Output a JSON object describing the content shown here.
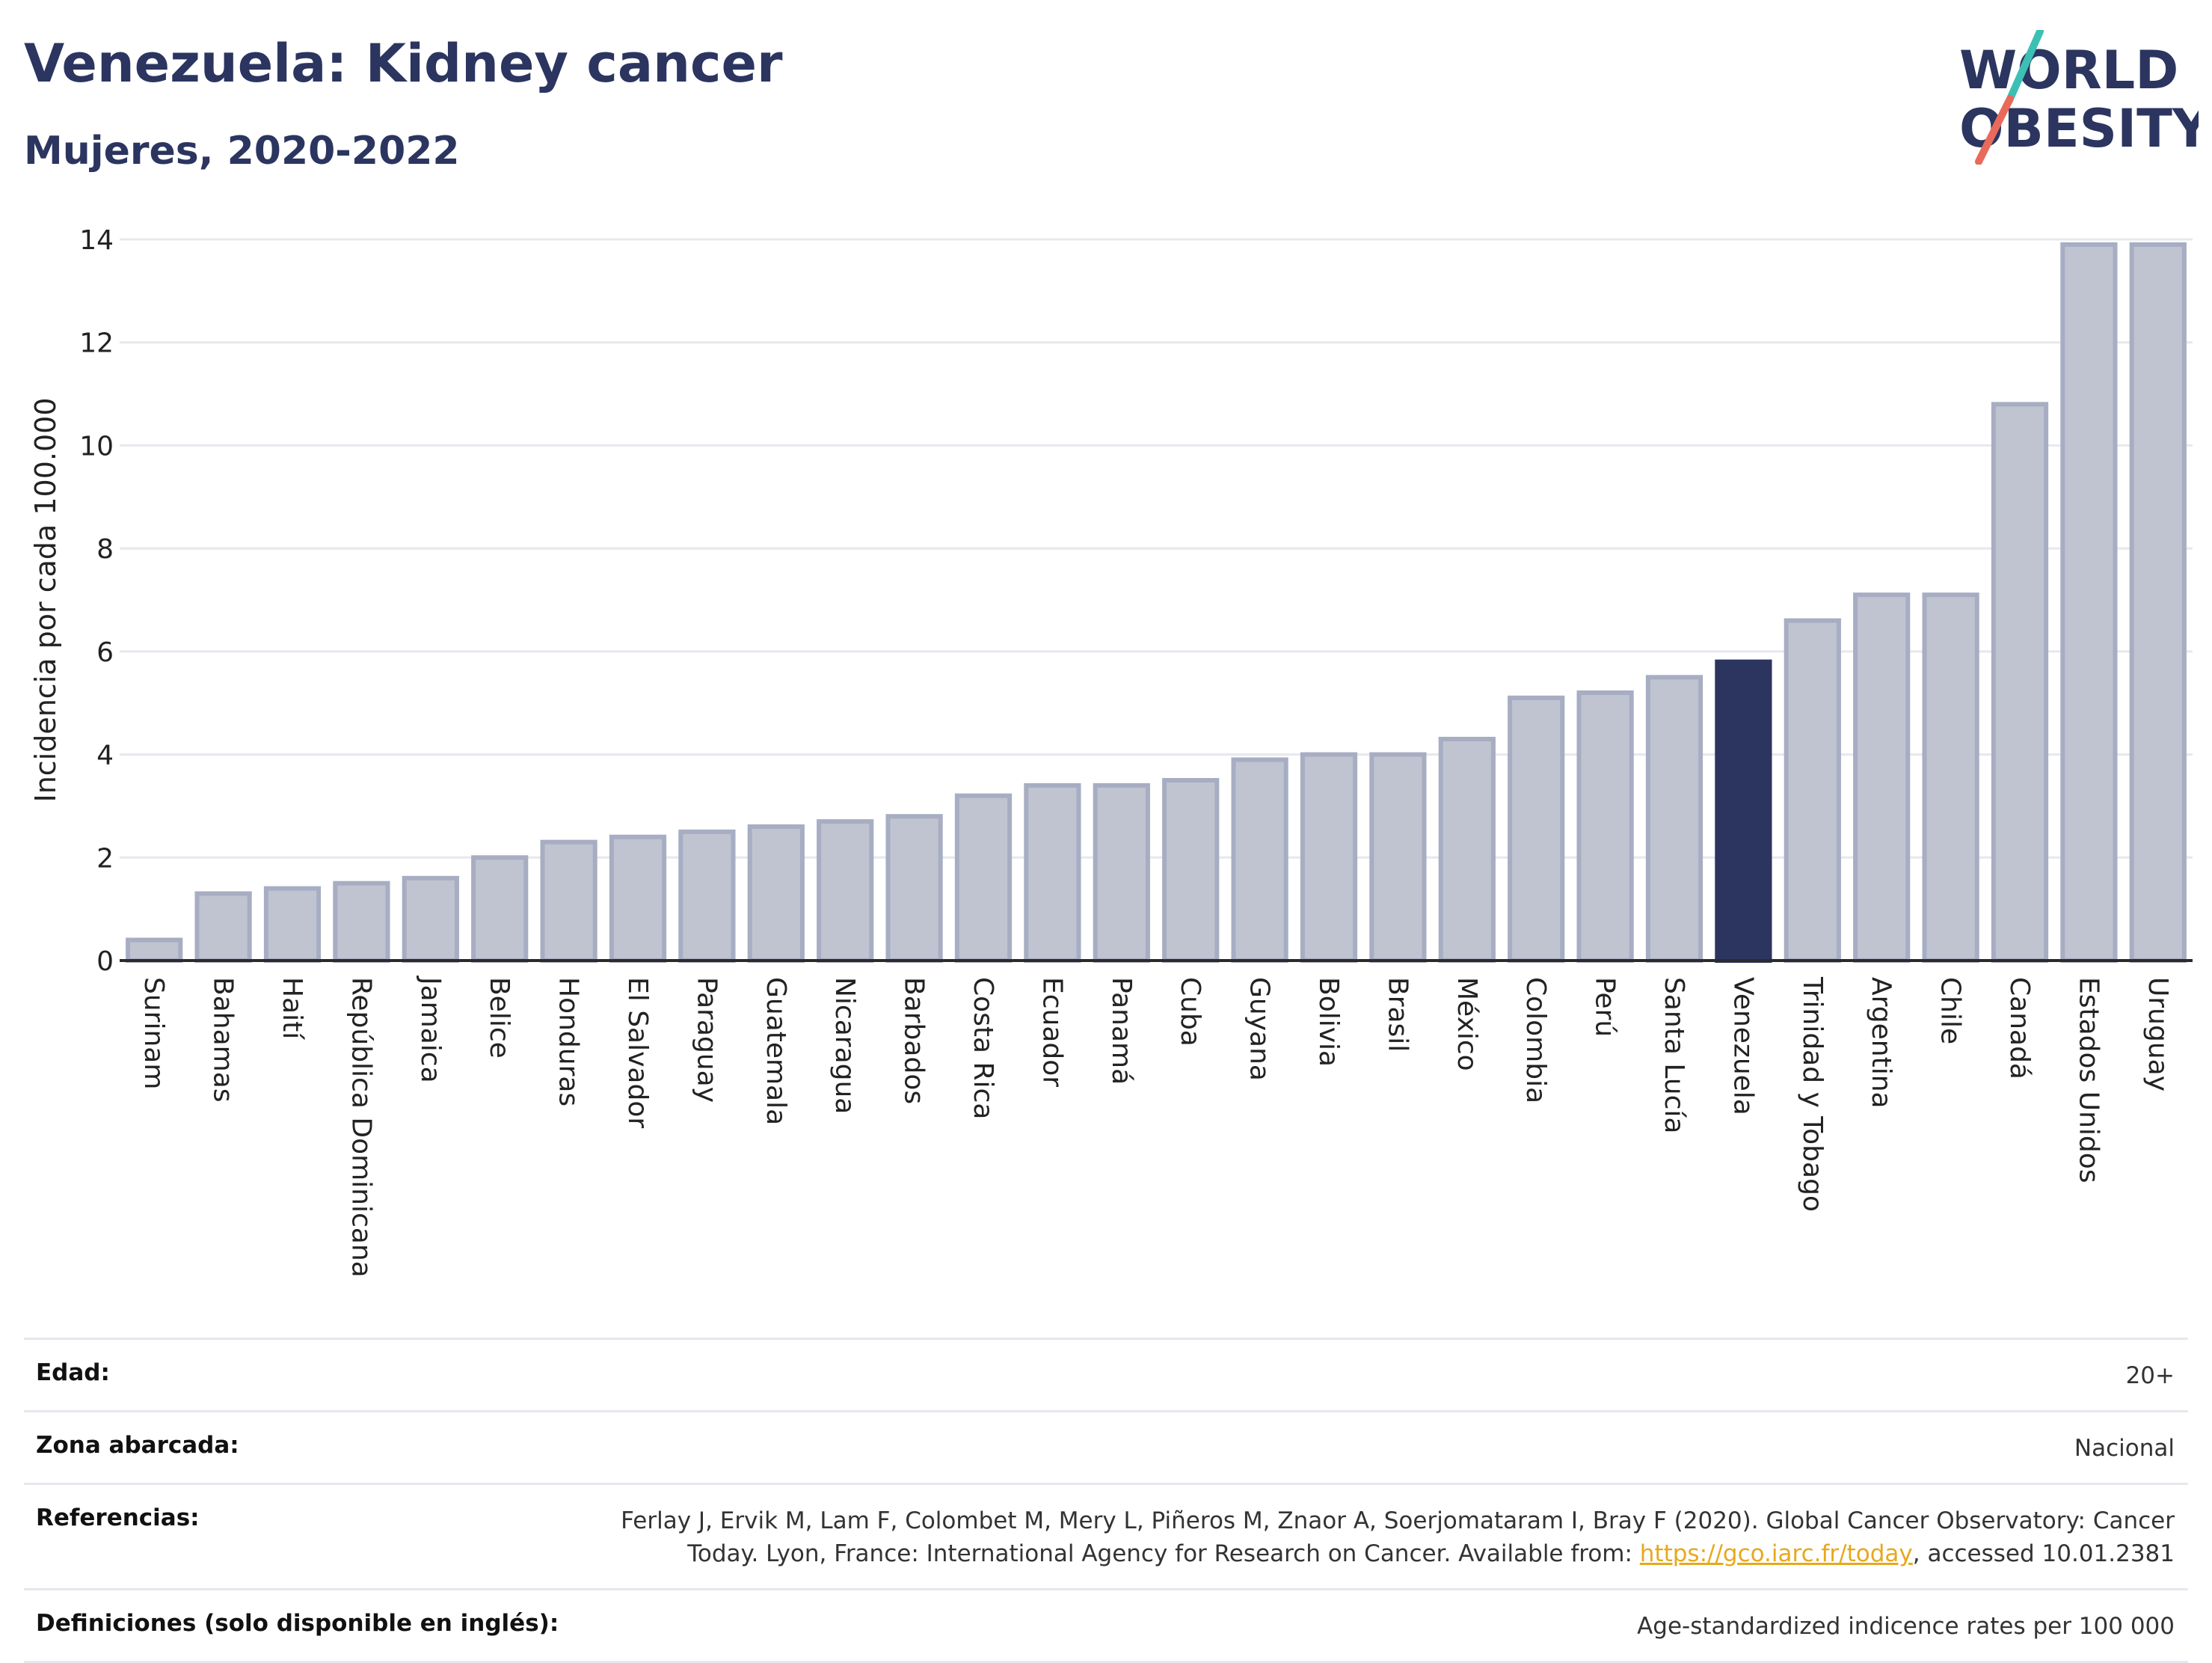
{
  "header": {
    "title": "Venezuela: Kidney cancer",
    "subtitle": "Mujeres, 2020-2022"
  },
  "logo": {
    "line1": "WORLD",
    "line2": "OBESITY",
    "slash_color_top": "#3cc0b4",
    "slash_color_bottom": "#e86a5a"
  },
  "colors": {
    "bar_default": "#c0c4d0",
    "bar_default_stroke": "#a7adc2",
    "bar_highlight": "#2b3560",
    "text": "#2b3560",
    "grid": "#e6e8ee",
    "link": "#e8a81c"
  },
  "chart_data": {
    "type": "bar",
    "ylabel": "Incidencia por cada 100.000",
    "ylim": [
      0,
      14
    ],
    "yticks": [
      0,
      2,
      4,
      6,
      8,
      10,
      12,
      14
    ],
    "grid": true,
    "highlight": "Venezuela",
    "categories": [
      "Surinam",
      "Bahamas",
      "Haití",
      "República Dominicana",
      "Jamaica",
      "Belice",
      "Honduras",
      "El Salvador",
      "Paraguay",
      "Guatemala",
      "Nicaragua",
      "Barbados",
      "Costa Rica",
      "Ecuador",
      "Panamá",
      "Cuba",
      "Guyana",
      "Bolivia",
      "Brasil",
      "México",
      "Colombia",
      "Perú",
      "Santa Lucía",
      "Venezuela",
      "Trinidad y Tobago",
      "Argentina",
      "Chile",
      "Canadá",
      "Estados Unidos",
      "Uruguay"
    ],
    "values": [
      0.4,
      1.3,
      1.4,
      1.5,
      1.6,
      2.0,
      2.3,
      2.4,
      2.5,
      2.6,
      2.7,
      2.8,
      3.2,
      3.4,
      3.4,
      3.5,
      3.9,
      4.0,
      4.0,
      4.3,
      5.1,
      5.2,
      5.5,
      5.8,
      6.6,
      7.1,
      7.1,
      10.8,
      13.9,
      13.9
    ]
  },
  "meta": [
    {
      "label": "Edad:",
      "value": "20+"
    },
    {
      "label": "Zona abarcada:",
      "value": "Nacional"
    },
    {
      "label": "Referencias:",
      "value_pre": "Ferlay J, Ervik M, Lam F, Colombet M, Mery L, Piñeros M, Znaor A, Soerjomataram I, Bray F (2020). Global Cancer Observatory: Cancer Today. Lyon, France: International Agency for Research on Cancer. Available from: ",
      "link": "https://gco.iarc.fr/today",
      "value_post": ", accessed 10.01.2381"
    },
    {
      "label": "Definiciones (solo disponible en inglés):",
      "value": "Age-standardized indicence rates per 100 000"
    }
  ]
}
